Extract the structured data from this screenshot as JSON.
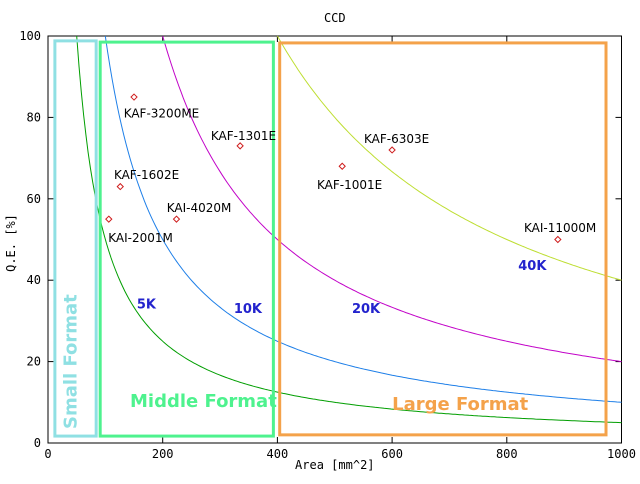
{
  "chart_data": {
    "type": "scatter",
    "title": "CCD",
    "xlabel": "Area [mm^2]",
    "ylabel": "Q.E. [%]",
    "xlim": [
      0,
      1000
    ],
    "ylim": [
      0,
      100
    ],
    "x_ticks": [
      0,
      200,
      400,
      600,
      800,
      1000
    ],
    "y_ticks": [
      0,
      20,
      40,
      60,
      80,
      100
    ],
    "grid": false,
    "legend": "none",
    "point_color": "#cf1d1d",
    "curve_label_color": "#2323cd",
    "points": [
      {
        "name": "KAI-2001M",
        "x": 106,
        "y": 55,
        "label_x": 105,
        "label_y": 49.4
      },
      {
        "name": "KAF-1602E",
        "x": 126,
        "y": 63,
        "label_x": 115,
        "label_y": 64.9
      },
      {
        "name": "KAF-3200ME",
        "x": 150,
        "y": 85,
        "label_x": 132,
        "label_y": 80.0
      },
      {
        "name": "KAI-4020M",
        "x": 224,
        "y": 55,
        "label_x": 207,
        "label_y": 56.8
      },
      {
        "name": "KAF-1301E",
        "x": 335,
        "y": 73,
        "label_x": 284,
        "label_y": 74.5
      },
      {
        "name": "KAF-1001E",
        "x": 513,
        "y": 68,
        "label_x": 469,
        "label_y": 62.4
      },
      {
        "name": "KAF-6303E",
        "x": 600,
        "y": 72,
        "label_x": 551,
        "label_y": 73.7
      },
      {
        "name": "KAI-11000M",
        "x": 889,
        "y": 50,
        "label_x": 830,
        "label_y": 51.8
      }
    ],
    "curves": [
      {
        "label": "5K",
        "equation": "y=5000/x",
        "k": 5000,
        "color": "#009e00",
        "label_x": 155,
        "label_y": 33.0
      },
      {
        "label": "10K",
        "equation": "y=10000/x",
        "k": 10000,
        "color": "#1e7fe8",
        "label_x": 324,
        "label_y": 32.0
      },
      {
        "label": "20K",
        "equation": "y=20000/x",
        "k": 20000,
        "color": "#c203c8",
        "label_x": 530,
        "label_y": 32.0
      },
      {
        "label": "40K",
        "equation": "y=40000/x",
        "k": 40000,
        "color": "#bede32",
        "label_x": 820,
        "label_y": 42.5
      }
    ],
    "regions": [
      {
        "label": "Small Format",
        "color": "#8fe0e3",
        "x0": 12,
        "x1": 84,
        "y0": 1.7,
        "y1": 98.8,
        "vertical": true,
        "label_x": 50,
        "label_y": 20.0
      },
      {
        "label": "Middle Format",
        "color": "#4ef28e",
        "x0": 91,
        "x1": 393,
        "y0": 1.7,
        "y1": 98.5,
        "vertical": false,
        "label_x": 143,
        "label_y": 8.8
      },
      {
        "label": "Large Format",
        "color": "#f4a24a",
        "x0": 404,
        "x1": 973,
        "y0": 2.0,
        "y1": 98.3,
        "vertical": false,
        "label_x": 600,
        "label_y": 8.1
      }
    ]
  }
}
